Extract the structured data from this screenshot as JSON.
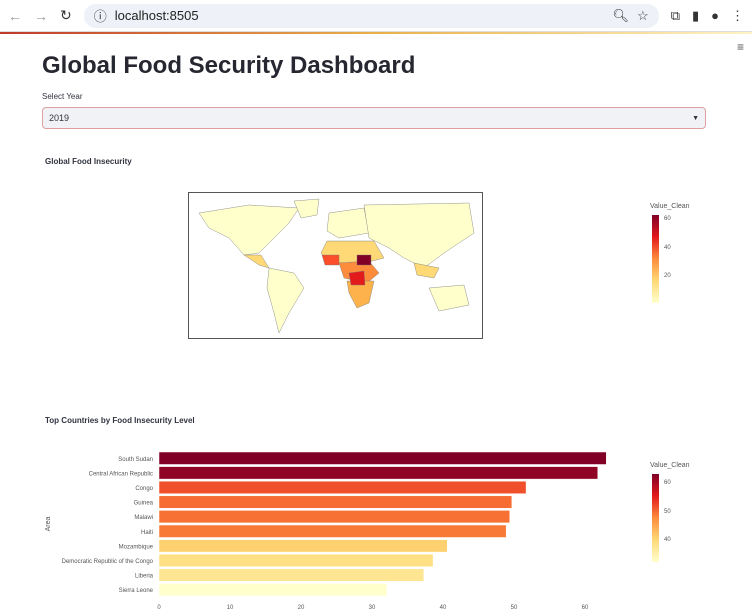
{
  "browser": {
    "url": "localhost:8505"
  },
  "page": {
    "title": "Global Food Security Dashboard",
    "select_label": "Select Year",
    "selected_year": "2019"
  },
  "map_section": {
    "title": "Global Food Insecurity",
    "colorbar_title": "Value_Clean",
    "colorbar_ticks": [
      "60",
      "40",
      "20"
    ]
  },
  "chart_data": {
    "type": "bar",
    "title": "Top Countries by Food Insecurity Level",
    "ylabel": "Area",
    "xlabel": "",
    "categories": [
      "South Sudan",
      "Central African Republic",
      "Congo",
      "Guinea",
      "Malawi",
      "Haiti",
      "Mozambique",
      "Democratic Republic of the Congo",
      "Liberia",
      "Sierra Leone"
    ],
    "values": [
      63.0,
      61.8,
      51.7,
      49.7,
      49.4,
      48.9,
      40.6,
      38.6,
      37.3,
      32.1
    ],
    "xticks": [
      "0",
      "10",
      "20",
      "30",
      "40",
      "50",
      "60"
    ],
    "xlim": [
      0,
      63.5
    ],
    "colorbar_title": "Value_Clean",
    "colorbar_ticks": [
      "60",
      "50",
      "40"
    ],
    "color_range": [
      32,
      63
    ]
  }
}
